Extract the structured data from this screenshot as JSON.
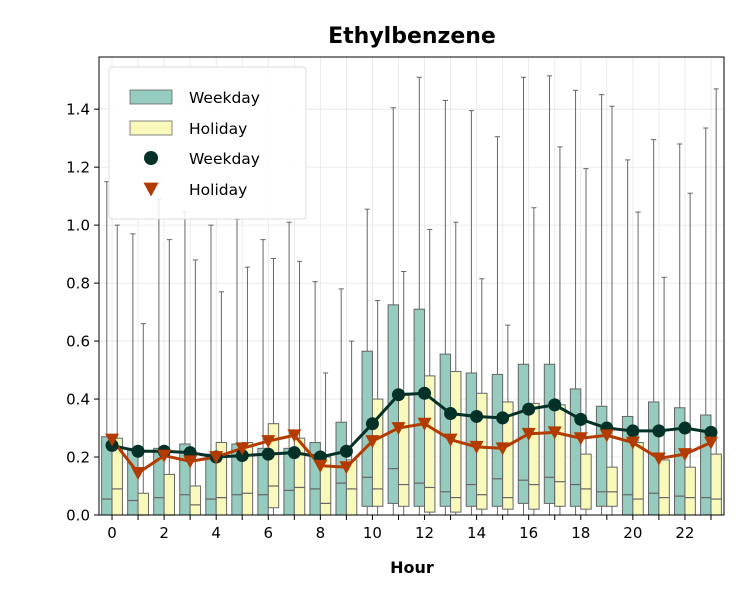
{
  "chart_data": {
    "type": "box",
    "title": "Ethylbenzene",
    "xlabel": "Hour",
    "ylabel": "",
    "xlim": [
      -0.5,
      23.5
    ],
    "ylim": [
      0.0,
      1.58
    ],
    "x_ticks": [
      0,
      2,
      4,
      6,
      8,
      10,
      12,
      14,
      16,
      18,
      20,
      22
    ],
    "y_ticks": [
      0.0,
      0.2,
      0.4,
      0.6,
      0.8,
      1.0,
      1.2,
      1.4
    ],
    "grid": true,
    "legend_position": "upper-left",
    "colors": {
      "weekday_box": "#96cbbf",
      "holiday_box": "#f9f9bc",
      "weekday_line": "#033127",
      "holiday_line": "#b33b00",
      "box_edge": "#666666"
    },
    "legend": [
      {
        "label": "Weekday",
        "kind": "box",
        "series": "weekday"
      },
      {
        "label": "Holiday",
        "kind": "box",
        "series": "holiday"
      },
      {
        "label": "Weekday",
        "kind": "circle",
        "series": "weekday"
      },
      {
        "label": "Holiday",
        "kind": "triangle",
        "series": "holiday"
      }
    ],
    "hours": [
      0,
      1,
      2,
      3,
      4,
      5,
      6,
      7,
      8,
      9,
      10,
      11,
      12,
      13,
      14,
      15,
      16,
      17,
      18,
      19,
      20,
      21,
      22,
      23
    ],
    "series": [
      {
        "name": "Weekday",
        "boxes": [
          {
            "low": 0.0,
            "q1": 0.0,
            "median": 0.055,
            "q3": 0.27,
            "high": 1.15
          },
          {
            "low": 0.0,
            "q1": 0.0,
            "median": 0.05,
            "q3": 0.23,
            "high": 0.97
          },
          {
            "low": 0.0,
            "q1": 0.0,
            "median": 0.06,
            "q3": 0.23,
            "high": 1.09
          },
          {
            "low": 0.0,
            "q1": 0.0,
            "median": 0.07,
            "q3": 0.245,
            "high": 1.045
          },
          {
            "low": 0.0,
            "q1": 0.0,
            "median": 0.055,
            "q3": 0.21,
            "high": 1.0
          },
          {
            "low": 0.0,
            "q1": 0.0,
            "median": 0.07,
            "q3": 0.245,
            "high": 1.02
          },
          {
            "low": 0.0,
            "q1": 0.0,
            "median": 0.07,
            "q3": 0.23,
            "high": 0.95
          },
          {
            "low": 0.0,
            "q1": 0.0,
            "median": 0.085,
            "q3": 0.23,
            "high": 1.01
          },
          {
            "low": 0.0,
            "q1": 0.0,
            "median": 0.09,
            "q3": 0.25,
            "high": 0.805
          },
          {
            "low": 0.0,
            "q1": 0.0,
            "median": 0.11,
            "q3": 0.32,
            "high": 0.78
          },
          {
            "low": 0.0,
            "q1": 0.03,
            "median": 0.13,
            "q3": 0.565,
            "high": 1.055
          },
          {
            "low": 0.0,
            "q1": 0.04,
            "median": 0.16,
            "q3": 0.725,
            "high": 1.405
          },
          {
            "low": 0.0,
            "q1": 0.03,
            "median": 0.11,
            "q3": 0.71,
            "high": 1.51
          },
          {
            "low": 0.0,
            "q1": 0.03,
            "median": 0.08,
            "q3": 0.555,
            "high": 1.43
          },
          {
            "low": 0.0,
            "q1": 0.03,
            "median": 0.105,
            "q3": 0.49,
            "high": 1.395
          },
          {
            "low": 0.0,
            "q1": 0.03,
            "median": 0.125,
            "q3": 0.485,
            "high": 1.305
          },
          {
            "low": 0.0,
            "q1": 0.04,
            "median": 0.12,
            "q3": 0.52,
            "high": 1.51
          },
          {
            "low": 0.0,
            "q1": 0.04,
            "median": 0.13,
            "q3": 0.52,
            "high": 1.515
          },
          {
            "low": 0.0,
            "q1": 0.03,
            "median": 0.105,
            "q3": 0.435,
            "high": 1.465
          },
          {
            "low": 0.0,
            "q1": 0.03,
            "median": 0.08,
            "q3": 0.375,
            "high": 1.45
          },
          {
            "low": 0.0,
            "q1": 0.0,
            "median": 0.07,
            "q3": 0.34,
            "high": 1.225
          },
          {
            "low": 0.0,
            "q1": 0.0,
            "median": 0.075,
            "q3": 0.39,
            "high": 1.295
          },
          {
            "low": 0.0,
            "q1": 0.0,
            "median": 0.065,
            "q3": 0.37,
            "high": 1.28
          },
          {
            "low": 0.0,
            "q1": 0.0,
            "median": 0.06,
            "q3": 0.345,
            "high": 1.335
          }
        ],
        "means": [
          0.24,
          0.22,
          0.22,
          0.215,
          0.2,
          0.205,
          0.21,
          0.215,
          0.2,
          0.22,
          0.315,
          0.415,
          0.42,
          0.35,
          0.34,
          0.335,
          0.365,
          0.38,
          0.33,
          0.3,
          0.29,
          0.29,
          0.3,
          0.285
        ]
      },
      {
        "name": "Holiday",
        "boxes": [
          {
            "low": 0.0,
            "q1": 0.0,
            "median": 0.09,
            "q3": 0.265,
            "high": 1.0
          },
          {
            "low": 0.0,
            "q1": 0.0,
            "median": 0.0,
            "q3": 0.075,
            "high": 0.66
          },
          {
            "low": 0.0,
            "q1": 0.0,
            "median": 0.0,
            "q3": 0.14,
            "high": 0.95
          },
          {
            "low": 0.0,
            "q1": 0.0,
            "median": 0.035,
            "q3": 0.1,
            "high": 0.88
          },
          {
            "low": 0.0,
            "q1": 0.0,
            "median": 0.06,
            "q3": 0.25,
            "high": 0.77
          },
          {
            "low": 0.0,
            "q1": 0.0,
            "median": 0.075,
            "q3": 0.25,
            "high": 0.855
          },
          {
            "low": 0.0,
            "q1": 0.025,
            "median": 0.1,
            "q3": 0.315,
            "high": 0.885
          },
          {
            "low": 0.0,
            "q1": 0.0,
            "median": 0.095,
            "q3": 0.265,
            "high": 0.875
          },
          {
            "low": 0.0,
            "q1": 0.0,
            "median": 0.04,
            "q3": 0.2,
            "high": 0.49
          },
          {
            "low": 0.0,
            "q1": 0.0,
            "median": 0.09,
            "q3": 0.19,
            "high": 0.6
          },
          {
            "low": 0.0,
            "q1": 0.03,
            "median": 0.09,
            "q3": 0.4,
            "high": 0.74
          },
          {
            "low": 0.0,
            "q1": 0.03,
            "median": 0.105,
            "q3": 0.42,
            "high": 0.84
          },
          {
            "low": 0.0,
            "q1": 0.01,
            "median": 0.095,
            "q3": 0.48,
            "high": 0.985
          },
          {
            "low": 0.0,
            "q1": 0.01,
            "median": 0.06,
            "q3": 0.495,
            "high": 1.01
          },
          {
            "low": 0.0,
            "q1": 0.02,
            "median": 0.07,
            "q3": 0.42,
            "high": 0.815
          },
          {
            "low": 0.0,
            "q1": 0.02,
            "median": 0.06,
            "q3": 0.39,
            "high": 0.655
          },
          {
            "low": 0.0,
            "q1": 0.02,
            "median": 0.105,
            "q3": 0.385,
            "high": 1.06
          },
          {
            "low": 0.0,
            "q1": 0.03,
            "median": 0.115,
            "q3": 0.38,
            "high": 1.27
          },
          {
            "low": 0.0,
            "q1": 0.02,
            "median": 0.09,
            "q3": 0.21,
            "high": 1.195
          },
          {
            "low": 0.0,
            "q1": 0.03,
            "median": 0.08,
            "q3": 0.165,
            "high": 1.41
          },
          {
            "low": 0.0,
            "q1": 0.0,
            "median": 0.055,
            "q3": 0.25,
            "high": 1.045
          },
          {
            "low": 0.0,
            "q1": 0.0,
            "median": 0.06,
            "q3": 0.19,
            "high": 0.82
          },
          {
            "low": 0.0,
            "q1": 0.0,
            "median": 0.06,
            "q3": 0.165,
            "high": 1.11
          },
          {
            "low": 0.0,
            "q1": 0.0,
            "median": 0.055,
            "q3": 0.21,
            "high": 1.47
          }
        ],
        "means": [
          0.26,
          0.145,
          0.205,
          0.185,
          0.2,
          0.23,
          0.255,
          0.275,
          0.17,
          0.165,
          0.255,
          0.3,
          0.315,
          0.26,
          0.235,
          0.23,
          0.28,
          0.285,
          0.265,
          0.275,
          0.25,
          0.195,
          0.21,
          0.25
        ]
      }
    ]
  }
}
